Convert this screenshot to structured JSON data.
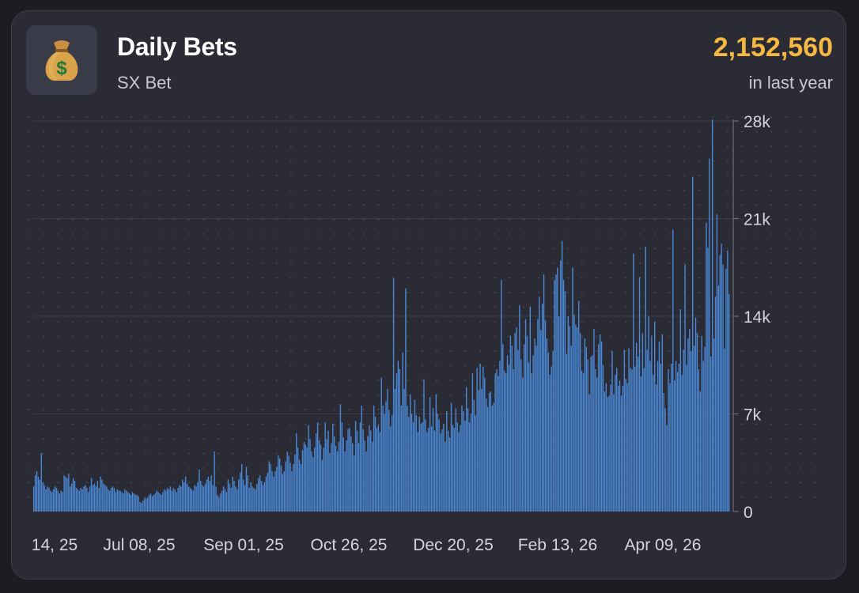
{
  "header": {
    "title": "Daily Bets",
    "subtitle": "SX Bet",
    "total": "2,152,560",
    "period": "in last year",
    "icon": "money-bag-icon"
  },
  "colors": {
    "bar": "#4a8ad8",
    "total": "#f5b942",
    "card": "#2a2b35"
  },
  "chart_data": {
    "type": "bar",
    "title": "Daily Bets",
    "x_tick_labels": [
      "14, 25",
      "Jul 08, 25",
      "Sep 01, 25",
      "Oct 26, 25",
      "Dec 20, 25",
      "Feb 13, 26",
      "Apr 09, 26"
    ],
    "y_tick_labels": [
      "0",
      "7k",
      "14k",
      "21k",
      "28k"
    ],
    "y_ticks": [
      0,
      7000,
      14000,
      21000,
      28000
    ],
    "ylim": [
      0,
      28000
    ],
    "grid": true,
    "series": [
      {
        "values": [
          1800,
          2600,
          2900,
          2500,
          2300,
          4200,
          2100,
          1900,
          1600,
          1800,
          1700,
          1500,
          1400,
          1600,
          1800,
          1700,
          1500,
          1300,
          1500,
          1400,
          2600,
          2500,
          2400,
          2700,
          1800,
          2000,
          2400,
          2200,
          1700,
          1600,
          1500,
          1700,
          1600,
          1800,
          1900,
          1700,
          1400,
          1800,
          2400,
          1900,
          2000,
          1800,
          2200,
          1700,
          2500,
          2300,
          2000,
          1900,
          1800,
          1600,
          1500,
          1700,
          1800,
          1700,
          1400,
          1600,
          1500,
          1500,
          1400,
          1300,
          1600,
          1500,
          1400,
          1300,
          1200,
          1400,
          1300,
          1200,
          1200,
          1100,
          700,
          600,
          800,
          1000,
          900,
          1000,
          1200,
          1300,
          1100,
          1200,
          1300,
          1500,
          1400,
          1300,
          1200,
          1400,
          1600,
          1500,
          1700,
          1600,
          1800,
          1500,
          1700,
          1600,
          1400,
          1700,
          1900,
          1800,
          2300,
          2100,
          2500,
          2000,
          1800,
          1700,
          1600,
          1500,
          1900,
          1800,
          2100,
          3000,
          2200,
          1900,
          1800,
          2000,
          2300,
          2500,
          2200,
          2600,
          1900,
          4300,
          1800,
          1200,
          1000,
          1300,
          1500,
          1800,
          1600,
          1400,
          2300,
          2000,
          1700,
          2500,
          2200,
          1800,
          1600,
          2300,
          2800,
          3400,
          2300,
          1900,
          3200,
          2600,
          1700,
          2100,
          1800,
          1700,
          1600,
          2000,
          2400,
          2600,
          2200,
          1900,
          2100,
          2500,
          2800,
          3600,
          3400,
          2900,
          2500,
          2900,
          3200,
          4000,
          3800,
          3300,
          2700,
          2900,
          3600,
          4300,
          4000,
          3500,
          2900,
          3400,
          4100,
          5600,
          4600,
          3700,
          3400,
          4400,
          5000,
          4800,
          4600,
          6200,
          5200,
          4300,
          3900,
          4600,
          5600,
          6400,
          5100,
          4800,
          3700,
          4600,
          6400,
          5200,
          5800,
          4200,
          4900,
          6300,
          5400,
          4700,
          4300,
          5000,
          7700,
          6400,
          5300,
          4300,
          5100,
          5900,
          6000,
          5400,
          4900,
          4000,
          6500,
          5800,
          4900,
          6400,
          7600,
          5900,
          5100,
          4300,
          5400,
          6200,
          5800,
          5000,
          7600,
          6800,
          6000,
          6200,
          5700,
          9600,
          7600,
          7000,
          7900,
          8800,
          7300,
          6100,
          6900,
          16700,
          8800,
          9900,
          10800,
          10200,
          7600,
          11400,
          8800,
          16000,
          7600,
          6800,
          8400,
          7000,
          6400,
          8000,
          6900,
          5700,
          6800,
          6300,
          6400,
          9500,
          6600,
          5700,
          6000,
          8200,
          6100,
          7400,
          5800,
          8400,
          7000,
          6600,
          5600,
          5900,
          6300,
          5000,
          7200,
          5800,
          5300,
          7800,
          6200,
          6000,
          7400,
          6400,
          5700,
          6200,
          7600,
          7200,
          6500,
          8900,
          7400,
          6400,
          7000,
          9900,
          8000,
          6900,
          10300,
          8700,
          10600,
          8800,
          10400,
          9600,
          8100,
          7500,
          8500,
          8600,
          7600,
          7800,
          9900,
          10200,
          9700,
          10800,
          16600,
          12000,
          10100,
          9900,
          11200,
          10500,
          12600,
          11900,
          10200,
          12800,
          13200,
          11600,
          14800,
          10900,
          9600,
          12000,
          13800,
          12600,
          10700,
          14700,
          9900,
          11200,
          12400,
          11900,
          13800,
          15400,
          13000,
          14900,
          17000,
          13700,
          12400,
          11400,
          9800,
          10400,
          11500,
          16600,
          17000,
          17500,
          14000,
          18000,
          19400,
          16600,
          15800,
          11300,
          14000,
          13300,
          11900,
          17500,
          14100,
          13400,
          13200,
          15100,
          12800,
          10100,
          9900,
          12400,
          11800,
          10900,
          8400,
          11100,
          11200,
          13100,
          10200,
          9600,
          12000,
          12700,
          12200,
          10500,
          8600,
          9200,
          8200,
          8300,
          9100,
          11500,
          8400,
          9800,
          10300,
          9000,
          9400,
          8300,
          9000,
          11600,
          9500,
          9200,
          11700,
          10300,
          10200,
          18500,
          10400,
          12100,
          11100,
          16800,
          9700,
          12800,
          10300,
          19000,
          11600,
          14000,
          10800,
          12600,
          9800,
          13600,
          9100,
          10800,
          12200,
          10600,
          12700,
          8500,
          7400,
          6200,
          10200,
          9200,
          10600,
          20200,
          9400,
          10800,
          10000,
          10600,
          14500,
          9800,
          11600,
          17700,
          10500,
          12400,
          13100,
          11500,
          24000,
          11900,
          13900,
          12800,
          10200,
          8600,
          12600,
          10800,
          11800,
          20700,
          18900,
          25300,
          11100,
          28100,
          12400,
          15400,
          21300,
          16200,
          18400,
          19200,
          17700,
          11700,
          17400,
          18700,
          15600
        ]
      }
    ]
  }
}
